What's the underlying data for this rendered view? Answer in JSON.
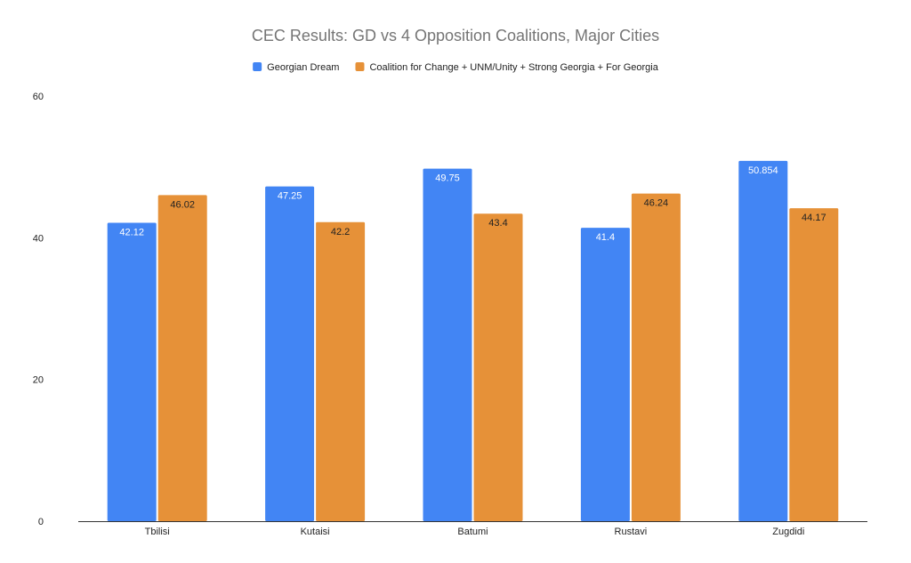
{
  "chart_data": {
    "type": "bar",
    "title": "CEC Results: GD vs 4 Opposition Coalitions, Major Cities",
    "xlabel": "",
    "ylabel": "",
    "categories": [
      "Tbilisi",
      "Kutaisi",
      "Batumi",
      "Rustavi",
      "Zugdidi"
    ],
    "series": [
      {
        "name": "Georgian Dream",
        "color": "#4285f4",
        "label_color": "#ffffff",
        "values": [
          42.12,
          47.25,
          49.75,
          41.4,
          50.854
        ],
        "labels": [
          "42.12",
          "47.25",
          "49.75",
          "41.4",
          "50.854"
        ]
      },
      {
        "name": "Coalition for Change + UNM/Unity + Strong Georgia + For Georgia",
        "color": "#e69138",
        "label_color": "#222222",
        "values": [
          46.02,
          42.2,
          43.4,
          46.24,
          44.17
        ],
        "labels": [
          "46.02",
          "42.2",
          "43.4",
          "46.24",
          "44.17"
        ]
      }
    ],
    "ylim": [
      0,
      60
    ],
    "yticks": [
      "0",
      "20",
      "40",
      "60"
    ],
    "grid": false,
    "legend_position": "top-center"
  }
}
